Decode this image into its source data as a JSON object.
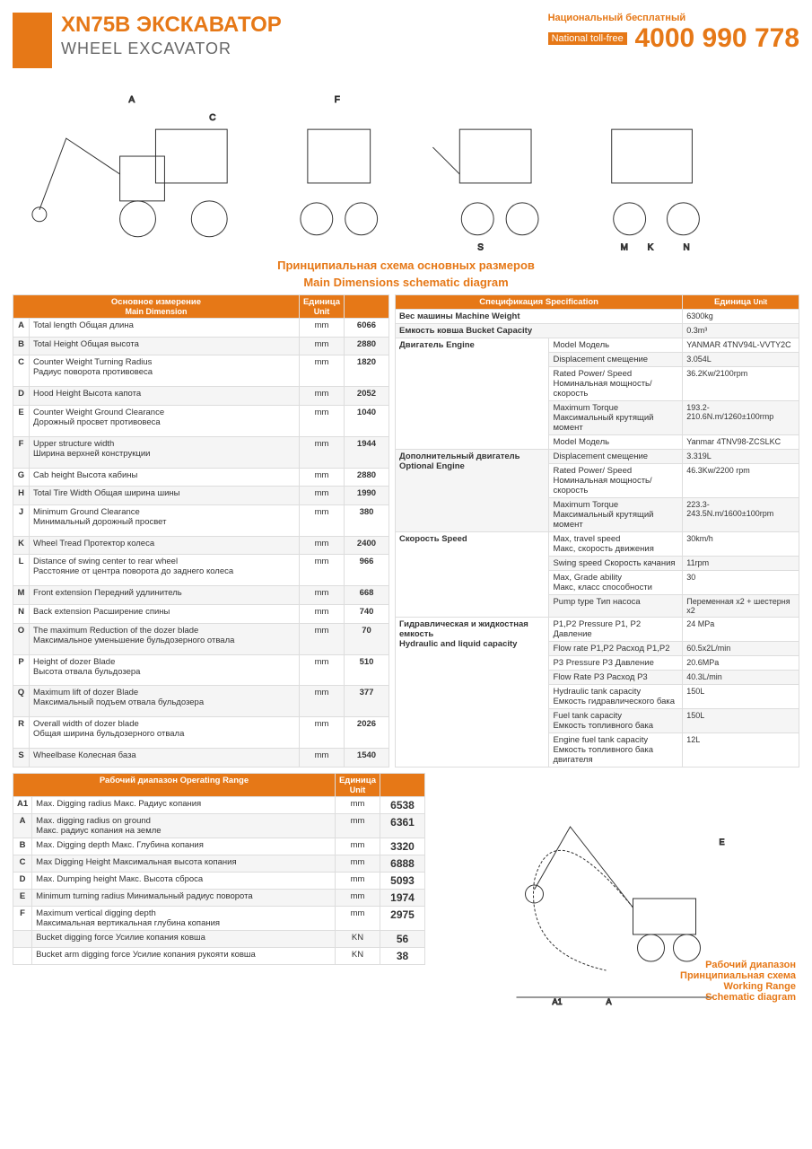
{
  "header": {
    "title": "XN75B ЭКСКАВАТОР",
    "subtitle": "WHEEL EXCAVATOR",
    "phone_label_ru": "Национальный бесплатный",
    "phone_label_en": "National toll-free",
    "phone_number": "4000 990 778"
  },
  "schematic_title_ru": "Принципиальная схема основных размеров",
  "schematic_title_en": "Main Dimensions schematic diagram",
  "main_dim": {
    "header_ru": "Основное измерение",
    "header_en": "Main Dimension",
    "unit_ru": "Единица",
    "unit_en": "Unit",
    "rows": [
      {
        "k": "A",
        "label": "Total length Общая длина",
        "unit": "mm",
        "val": "6066"
      },
      {
        "k": "B",
        "label": "Total Height Общая высота",
        "unit": "mm",
        "val": "2880"
      },
      {
        "k": "C",
        "label": "Counter Weight Turning Radius\nРадиус поворота противовеса",
        "unit": "mm",
        "val": "1820"
      },
      {
        "k": "D",
        "label": "Hood Height Высота капота",
        "unit": "mm",
        "val": "2052"
      },
      {
        "k": "E",
        "label": "Counter Weight Ground Clearance\nДорожный просвет противовеса",
        "unit": "mm",
        "val": "1040"
      },
      {
        "k": "F",
        "label": "Upper structure width\nШирина верхней конструкции",
        "unit": "mm",
        "val": "1944"
      },
      {
        "k": "G",
        "label": "Cab height  Высота кабины",
        "unit": "mm",
        "val": "2880"
      },
      {
        "k": "H",
        "label": "Total Tire Width  Общая ширина шины",
        "unit": "mm",
        "val": "1990"
      },
      {
        "k": "J",
        "label": "Minimum Ground Clearance\nМинимальный дорожный просвет",
        "unit": "mm",
        "val": "380"
      },
      {
        "k": "K",
        "label": "Wheel Tread  Протектор колеса",
        "unit": "mm",
        "val": "2400"
      },
      {
        "k": "L",
        "label": "Distance of swing center to rear wheel\nРасстояние от центра поворота до заднего колеса",
        "unit": "mm",
        "val": "966"
      },
      {
        "k": "M",
        "label": "Front extension Передний удлинитель",
        "unit": "mm",
        "val": "668"
      },
      {
        "k": "N",
        "label": "Back extension  Расширение спины",
        "unit": "mm",
        "val": "740"
      },
      {
        "k": "O",
        "label": "The maximum Reduction of the dozer blade\nМаксимальное уменьшение бульдозерного отвала",
        "unit": "mm",
        "val": "70"
      },
      {
        "k": "P",
        "label": "Height of dozer Blade\nВысота отвала бульдозера",
        "unit": "mm",
        "val": "510"
      },
      {
        "k": "Q",
        "label": "Maximum lift of dozer Blade\nМаксимальный подъем отвала бульдозера",
        "unit": "mm",
        "val": "377"
      },
      {
        "k": "R",
        "label": "Overall width of dozer blade\nОбщая ширина бульдозерного отвала",
        "unit": "mm",
        "val": "2026"
      },
      {
        "k": "S",
        "label": "Wheelbase  Колесная база",
        "unit": "mm",
        "val": "1540"
      }
    ]
  },
  "spec": {
    "header": "Спецификация Specification",
    "unit_ru": "Единица",
    "unit_en": "Unit",
    "rows": [
      {
        "cat": "",
        "label": "Вес машины Machine Weight",
        "val": "6300kg"
      },
      {
        "cat": "",
        "label": "Емкость ковша Bucket Capacity",
        "val": "0.3m³"
      },
      {
        "cat": "Двигатель Engine",
        "catRows": 5,
        "label": "Model Модель",
        "val": "YANMAR 4TNV94L-VVTY2C"
      },
      {
        "label": "Displacement смещение",
        "val": "3.054L"
      },
      {
        "label": "Rated Power/ Speed\nНоминальная мощность/скорость",
        "val": "36.2Kw/2100rpm"
      },
      {
        "label": "Maximum Torque\nМаксимальный крутящий момент",
        "val": "193.2-210.6N.m/1260±100rmp"
      },
      {
        "label": "Model Модель",
        "val": "Yanmar 4TNV98-ZCSLKC"
      },
      {
        "cat": "Дополнительный двигатель\nOptional Engine",
        "catRows": 3,
        "label": "Displacement смещение",
        "val": "3.319L"
      },
      {
        "label": "Rated Power/ Speed\nНоминальная мощность/скорость",
        "val": "46.3Kw/2200 rpm"
      },
      {
        "label": "Maximum Torque\nМаксимальный крутящий момент",
        "val": "223.3-243.5N.m/1600±100rpm"
      },
      {
        "cat": "Скорость Speed",
        "catRows": 4,
        "label": "Max, travel speed\nМакс, скорость движения",
        "val": "30km/h"
      },
      {
        "label": "Swing speed Скорость качания",
        "val": "11rpm"
      },
      {
        "label": "Max, Grade ability\nМакс, класс способности",
        "val": "30"
      },
      {
        "label": "Pump type Тип насоса",
        "val": "Переменная x2 + шестерня x2"
      },
      {
        "cat": "Гидравлическая и жидкостная емкость\nHydraulic and liquid capacity",
        "catRows": 7,
        "label": "P1,P2 Pressure P1, P2 Давление",
        "val": "24 MPa"
      },
      {
        "label": "Flow rate P1,P2 Расход P1,P2",
        "val": "60.5x2L/min"
      },
      {
        "label": "P3 Pressure P3 Давление",
        "val": "20.6MPa"
      },
      {
        "label": "Flow Rate P3 Расход P3",
        "val": "40.3L/min"
      },
      {
        "label": "Hydraulic tank capacity\nЕмкость гидравлического бака",
        "val": "150L"
      },
      {
        "label": "Fuel tank capacity\nЕмкость топливного бака",
        "val": "150L"
      },
      {
        "label": "Engine fuel tank capacity\nЕмкость топливного бака двигателя",
        "val": "12L"
      }
    ]
  },
  "range": {
    "header": "Рабочий диапазон Operating Range",
    "unit_ru": "Единица",
    "unit_en": "Unit",
    "rows": [
      {
        "k": "A1",
        "label": "Max. Digging radius  Макс. Радиус копания",
        "unit": "mm",
        "val": "6538"
      },
      {
        "k": "A",
        "label": "Max. digging radius on ground\nМакс. радиус копания на земле",
        "unit": "mm",
        "val": "6361"
      },
      {
        "k": "B",
        "label": "Max. Digging depth Макс. Глубина копания",
        "unit": "mm",
        "val": "3320"
      },
      {
        "k": "C",
        "label": "Max Digging Height Максимальная высота копания",
        "unit": "mm",
        "val": "6888"
      },
      {
        "k": "D",
        "label": "Max. Dumping height Макс. Высота сброса",
        "unit": "mm",
        "val": "5093"
      },
      {
        "k": "E",
        "label": "Minimum turning radius Минимальный радиус поворота",
        "unit": "mm",
        "val": "1974"
      },
      {
        "k": "F",
        "label": "Maximum vertical digging depth\nМаксимальная вертикальная глубина копания",
        "unit": "mm",
        "val": "2975"
      },
      {
        "k": "",
        "label": "Bucket digging force Усилие копания ковша",
        "unit": "KN",
        "val": "56"
      },
      {
        "k": "",
        "label": "Bucket arm digging force Усилие копания рукояти ковша",
        "unit": "KN",
        "val": "38"
      }
    ],
    "diagram_label_ru1": "Рабочий диапазон",
    "diagram_label_ru2": "Принципиальная схема",
    "diagram_label_en1": "Working Range",
    "diagram_label_en2": "Schematic diagram"
  },
  "colors": {
    "accent": "#e67817",
    "stripe": "#f5f5f5",
    "border": "#ddd"
  }
}
